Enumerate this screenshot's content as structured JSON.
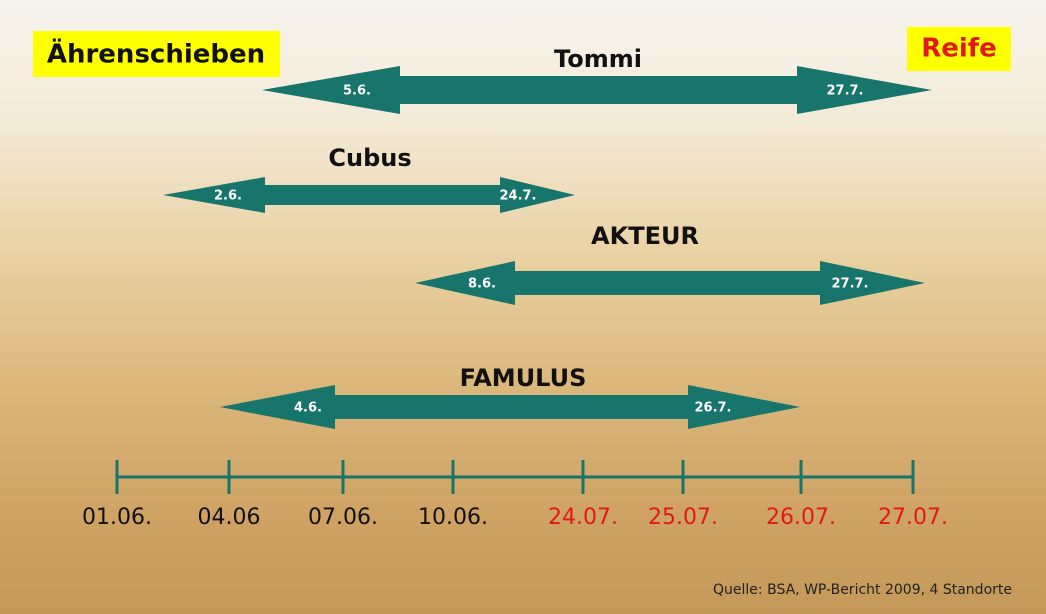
{
  "header": {
    "left": "Ährenschieben",
    "right": "Reife"
  },
  "varieties": [
    {
      "name": "Tommi",
      "start": "5.6.",
      "end": "27.7."
    },
    {
      "name": "Cubus",
      "start": "2.6.",
      "end": "24.7."
    },
    {
      "name": "AKTEUR",
      "start": "8.6.",
      "end": "27.7."
    },
    {
      "name": "FAMULUS",
      "start": "4.6.",
      "end": "26.7."
    }
  ],
  "axis": {
    "heading_ticks": [
      "01.06.",
      "04.06",
      "07.06.",
      "10.06."
    ],
    "heading_color": "#111111",
    "maturity_ticks": [
      "24.07.",
      "25.07.",
      "26.07.",
      "27.07."
    ],
    "maturity_color": "#e0191b"
  },
  "source": "Quelle: BSA, WP-Bericht 2009, 4 Standorte"
}
